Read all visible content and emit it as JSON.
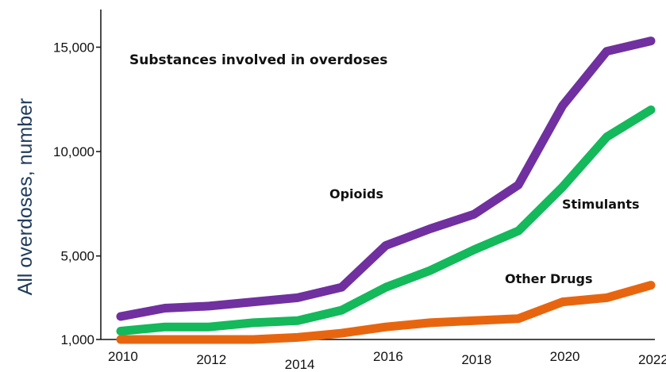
{
  "chart_data": {
    "type": "line",
    "title": "Substances involved in overdoses",
    "ylabel": "All overdoses, number",
    "xlabel": "",
    "x": [
      2010,
      2011,
      2012,
      2013,
      2014,
      2015,
      2016,
      2017,
      2018,
      2019,
      2020,
      2021,
      2022
    ],
    "xticks": [
      "2010",
      "2012",
      "2014",
      "2016",
      "2018",
      "2020",
      "2022"
    ],
    "yticks": [
      "1,000",
      "5,000",
      "10,000",
      "15,000"
    ],
    "xlim": [
      2010,
      2022
    ],
    "ylim": [
      1000,
      16500
    ],
    "grid": false,
    "legend": "none",
    "series": [
      {
        "name": "Opioids",
        "color": "#7030a0",
        "values": [
          2100,
          2500,
          2600,
          2800,
          3000,
          3500,
          5500,
          6300,
          7000,
          8400,
          12200,
          14800,
          15300
        ]
      },
      {
        "name": "Stimulants",
        "color": "#13b95a",
        "values": [
          1400,
          1600,
          1600,
          1800,
          1900,
          2400,
          3500,
          4300,
          5300,
          6200,
          8300,
          10700,
          12000
        ]
      },
      {
        "name": "Other Drugs",
        "color": "#e8650f",
        "values": [
          1000,
          1000,
          1000,
          1000,
          1100,
          1300,
          1600,
          1800,
          1900,
          2000,
          2800,
          3000,
          3600
        ]
      }
    ]
  }
}
